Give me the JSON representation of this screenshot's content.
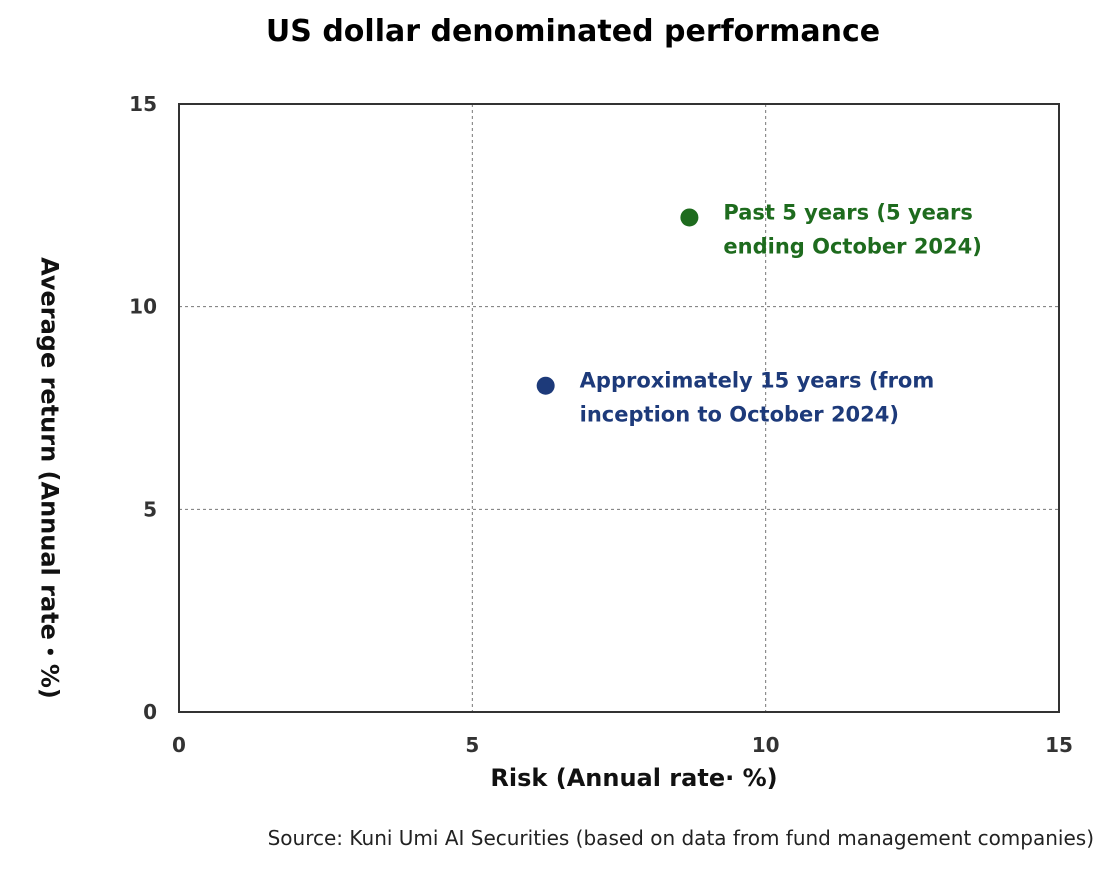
{
  "chart_data": {
    "type": "scatter",
    "title": "US dollar denominated performance",
    "xlabel": "Risk (Annual rate· %)",
    "ylabel": "Average return (Annual rate・%)",
    "xlim": [
      0,
      15
    ],
    "ylim": [
      0,
      15
    ],
    "x_ticks": [
      0,
      5,
      10,
      15
    ],
    "y_ticks": [
      0,
      5,
      10,
      15
    ],
    "grid": true,
    "points": [
      {
        "x": 8.7,
        "y": 12.2,
        "color": "#1e6b1e",
        "label": [
          "Past 5 years (5 years",
          "ending October 2024)"
        ]
      },
      {
        "x": 6.25,
        "y": 8.05,
        "color": "#1d3a7a",
        "label": [
          "Approximately 15 years (from",
          "inception to October 2024)"
        ]
      }
    ],
    "source": "Source: Kuni Umi AI Securities (based on data from fund management companies)"
  }
}
